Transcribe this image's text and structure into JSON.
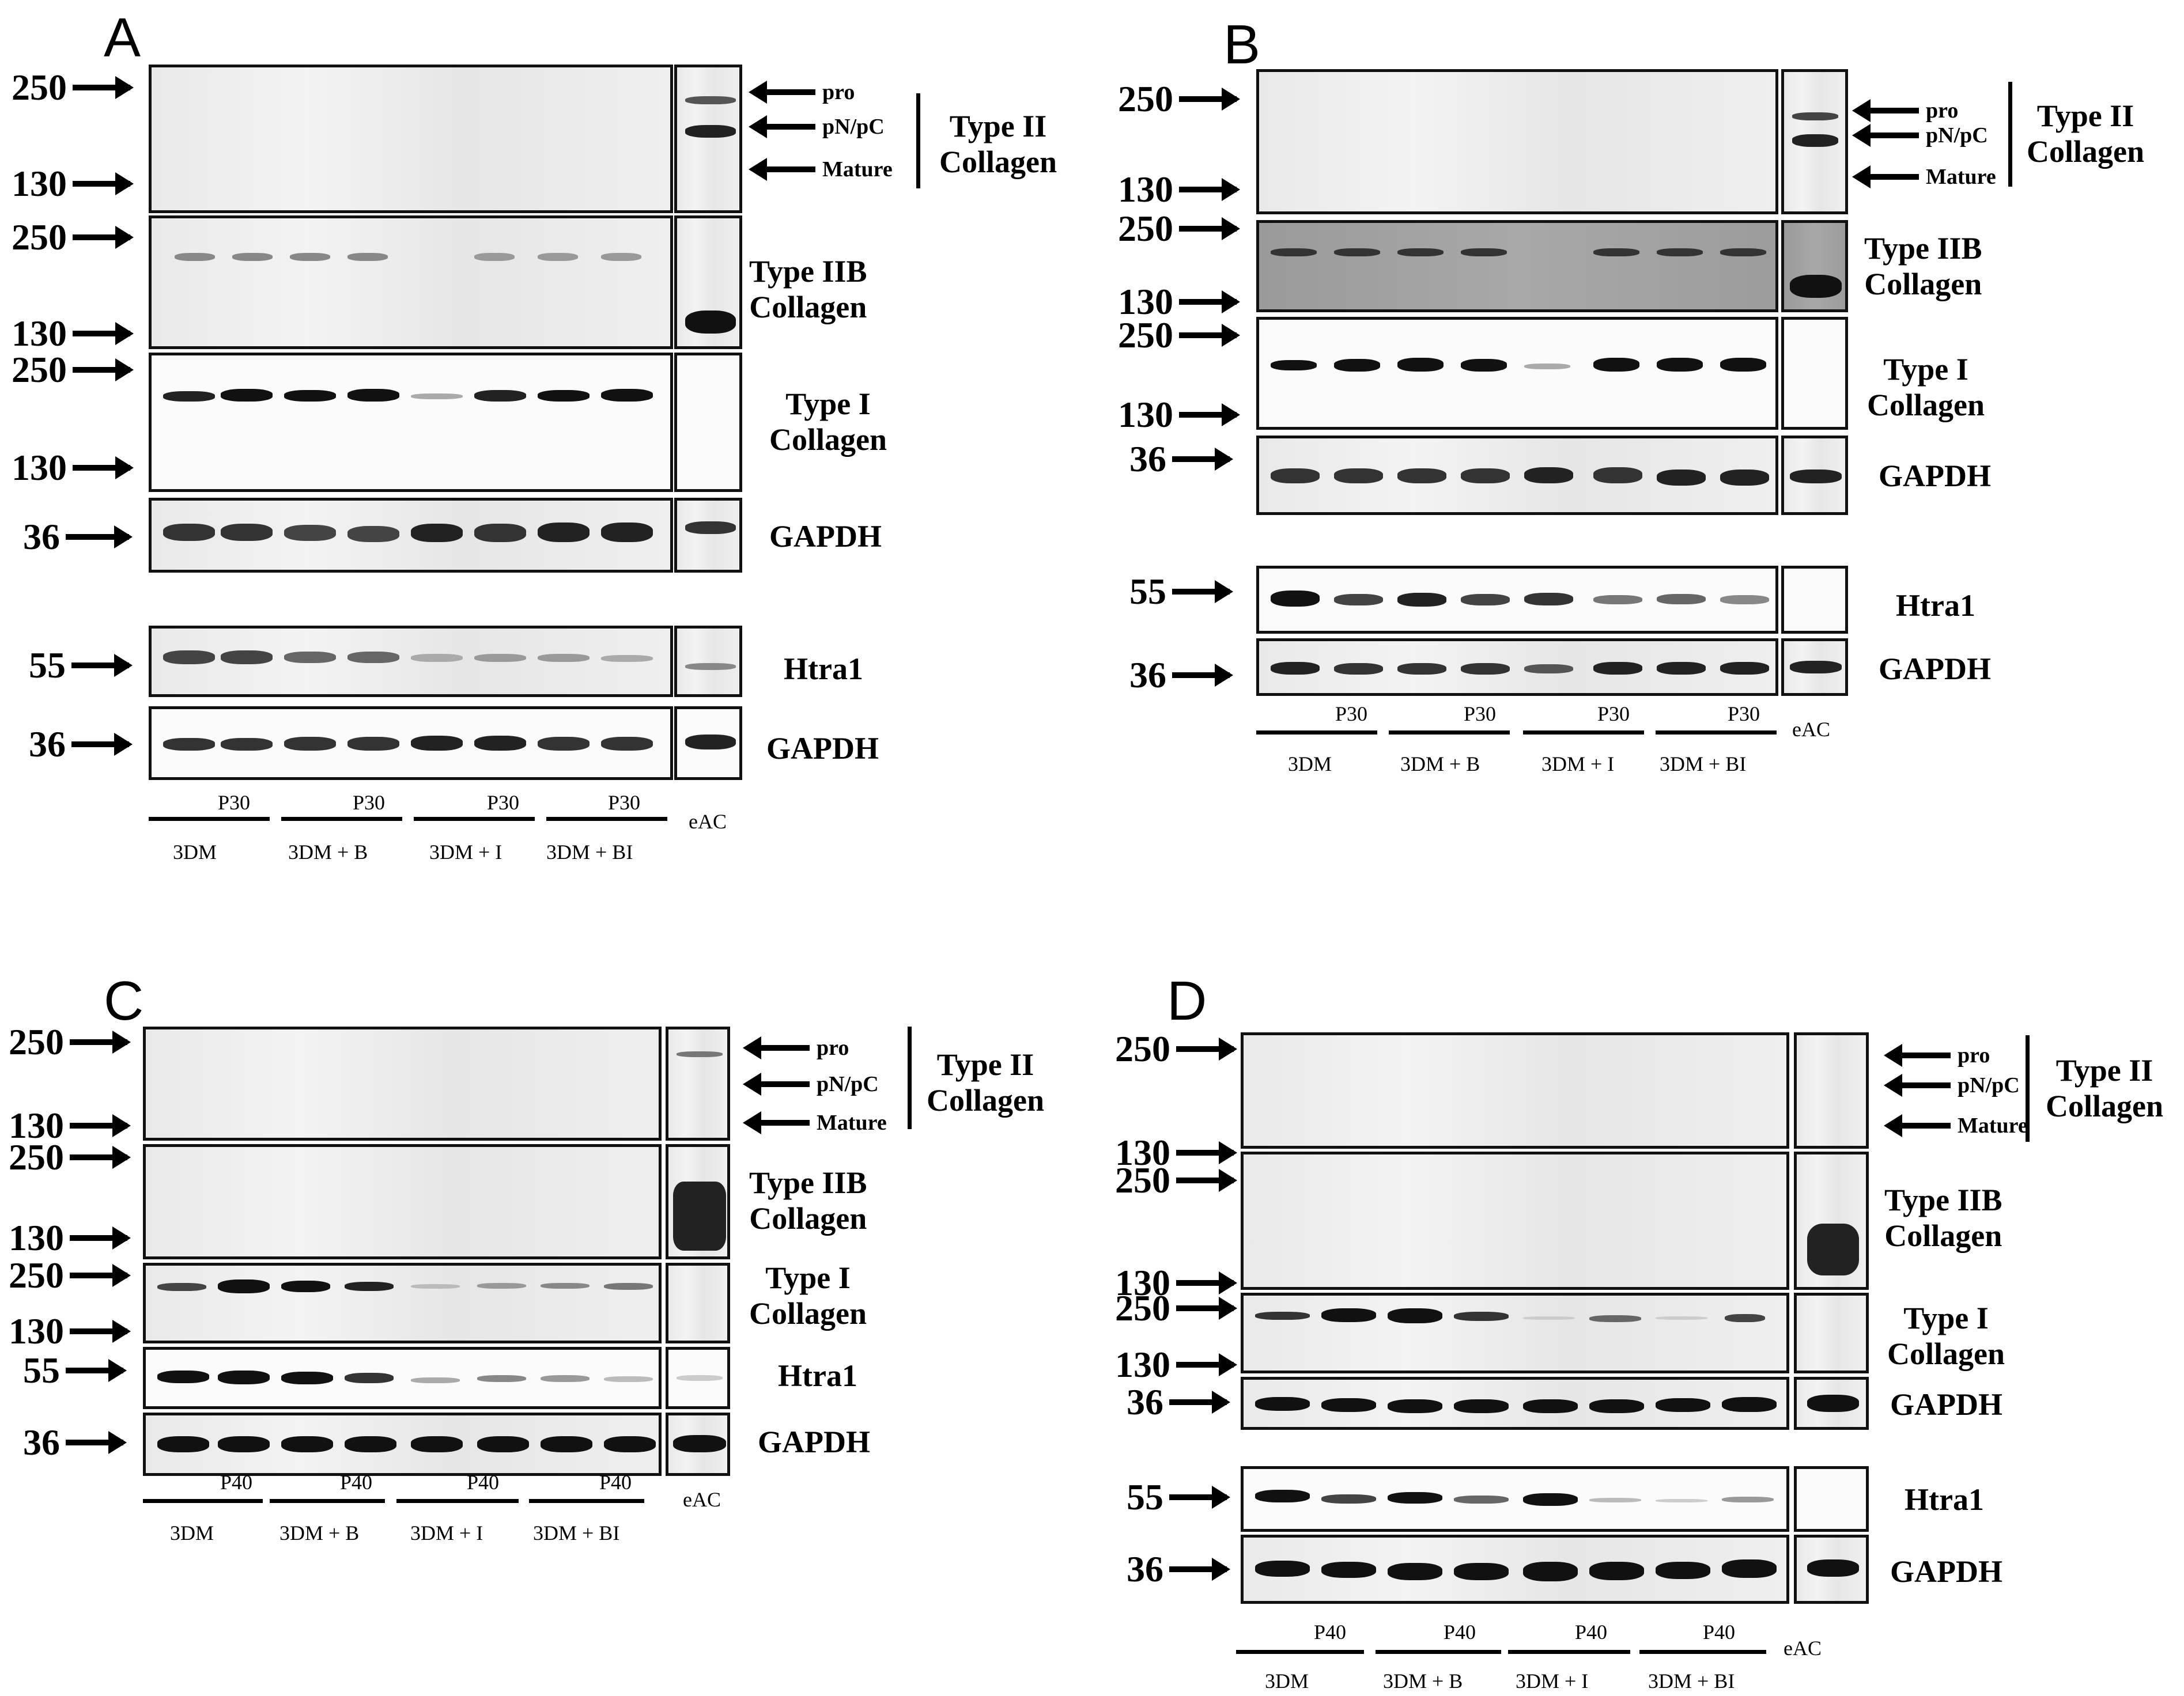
{
  "panels": {
    "A": {
      "letter": "A",
      "mw": {
        "m250": "250",
        "m130": "130",
        "m36": "36",
        "m55": "55"
      },
      "forms": {
        "pro": "pro",
        "pnpc": "pN/pC",
        "mature": "Mature"
      },
      "labels": {
        "col2": "Type II\nCollagen",
        "col2b": "Type IIB\nCollagen",
        "col1": "Type I\nCollagen",
        "gapdh": "GAPDH",
        "htra1": "Htra1"
      },
      "passage": "P30",
      "groups": [
        "3DM",
        "3DM + B",
        "3DM + I",
        "3DM + BI"
      ],
      "control": "eAC"
    },
    "B": {
      "letter": "B",
      "mw": {
        "m250": "250",
        "m130": "130",
        "m36": "36",
        "m55": "55"
      },
      "forms": {
        "pro": "pro",
        "pnpc": "pN/pC",
        "mature": "Mature"
      },
      "labels": {
        "col2": "Type II\nCollagen",
        "col2b": "Type IIB\nCollagen",
        "col1": "Type I\nCollagen",
        "gapdh": "GAPDH",
        "htra1": "Htra1"
      },
      "passage": "P30",
      "groups": [
        "3DM",
        "3DM + B",
        "3DM + I",
        "3DM + BI"
      ],
      "control": "eAC"
    },
    "C": {
      "letter": "C",
      "mw": {
        "m250": "250",
        "m130": "130",
        "m36": "36",
        "m55": "55"
      },
      "forms": {
        "pro": "pro",
        "pnpc": "pN/pC",
        "mature": "Mature"
      },
      "labels": {
        "col2": "Type II\nCollagen",
        "col2b": "Type IIB\nCollagen",
        "col1": "Type I\nCollagen",
        "gapdh": "GAPDH",
        "htra1": "Htra1"
      },
      "passage": "P40",
      "groups": [
        "3DM",
        "3DM + B",
        "3DM + I",
        "3DM + BI"
      ],
      "control": "eAC"
    },
    "D": {
      "letter": "D",
      "mw": {
        "m250": "250",
        "m130": "130",
        "m36": "36",
        "m55": "55"
      },
      "forms": {
        "pro": "pro",
        "pnpc": "pN/pC",
        "mature": "Mature"
      },
      "labels": {
        "col2": "Type II\nCollagen",
        "col2b": "Type IIB\nCollagen",
        "col1": "Type I\nCollagen",
        "gapdh": "GAPDH",
        "htra1": "Htra1"
      },
      "passage": "P40",
      "groups": [
        "3DM",
        "3DM + B",
        "3DM + I",
        "3DM + BI"
      ],
      "control": "eAC"
    }
  }
}
